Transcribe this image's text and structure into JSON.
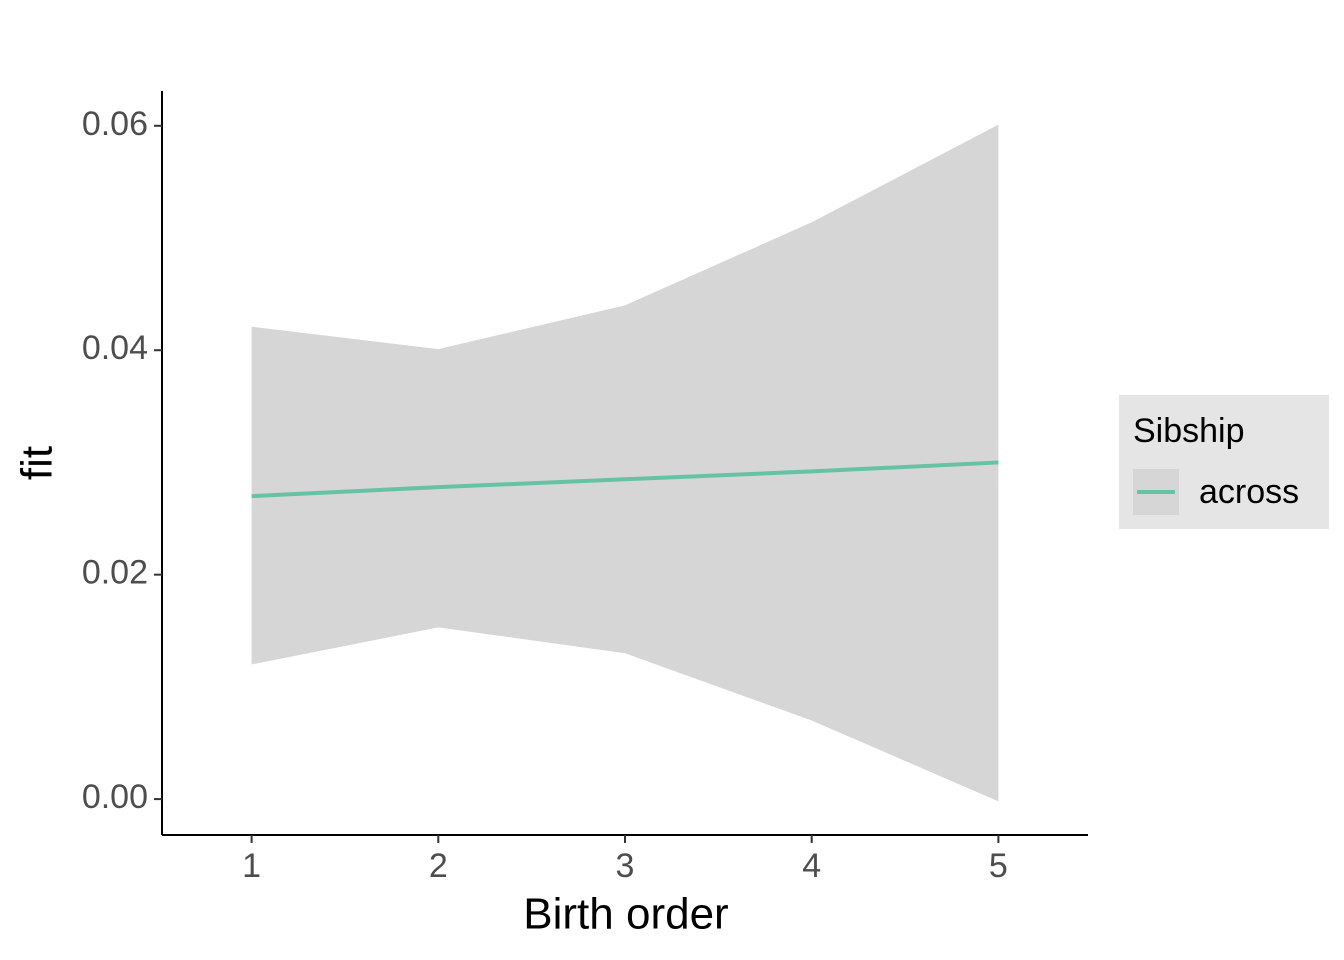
{
  "chart_data": {
    "type": "line",
    "x_label": "Birth order",
    "y_label": "fit",
    "x": [
      1,
      2,
      3,
      4,
      5
    ],
    "series": [
      {
        "name": "across",
        "color": "#66c2a5",
        "band_color": "#d6d6d6",
        "values": [
          0.027,
          0.0278,
          0.0285,
          0.0292,
          0.03
        ],
        "lower": [
          0.012,
          0.0153,
          0.013,
          0.007,
          -0.0002
        ],
        "upper": [
          0.0421,
          0.0401,
          0.044,
          0.0514,
          0.0601
        ]
      }
    ],
    "xlim": [
      0.52,
      5.48
    ],
    "ylim": [
      -0.0032,
      0.0631
    ],
    "xticks": [
      1,
      2,
      3,
      4,
      5
    ],
    "yticks": [
      {
        "value": 0,
        "label": "0.00"
      },
      {
        "value": 0.02,
        "label": "0.02"
      },
      {
        "value": 0.04,
        "label": "0.04"
      },
      {
        "value": 0.06,
        "label": "0.06"
      }
    ],
    "legend_title": "Sibship",
    "legend_position": "right",
    "grid": false
  }
}
